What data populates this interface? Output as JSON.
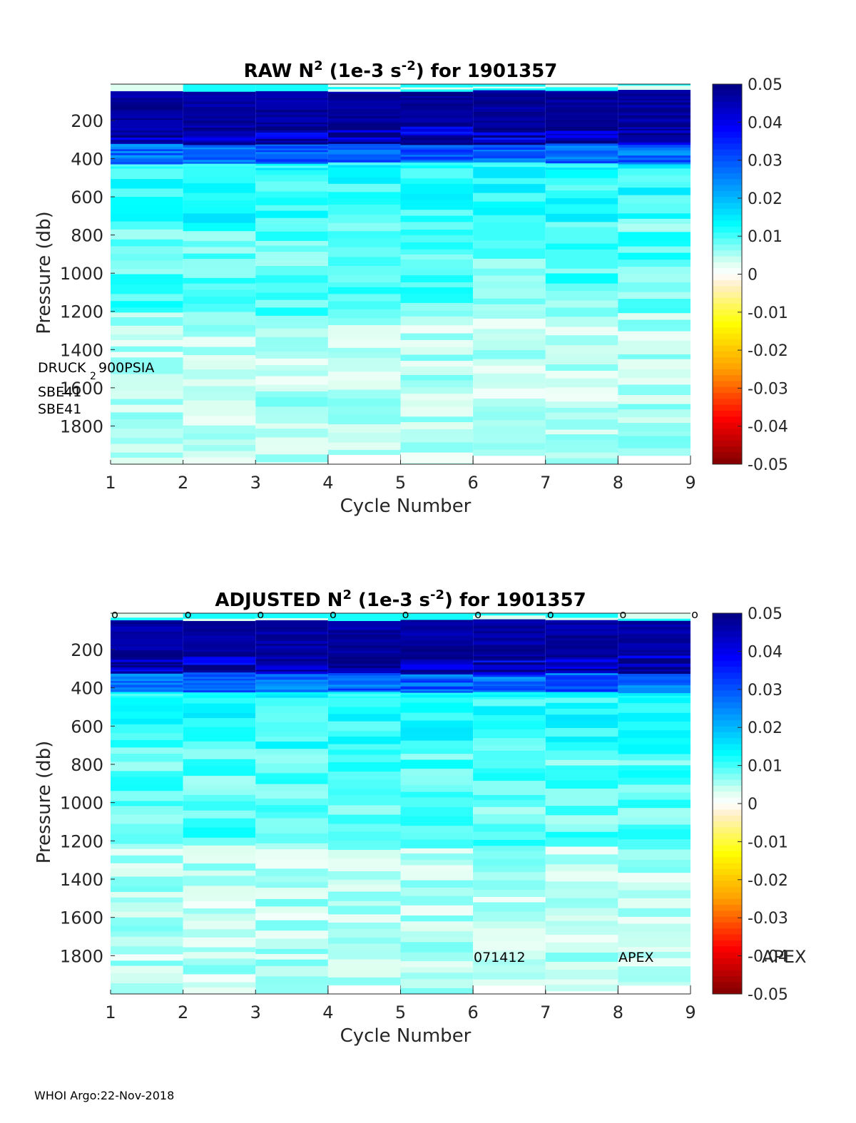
{
  "footer": "WHOI Argo:22-Nov-2018",
  "colorbar": {
    "ticks": [
      "0.05",
      "0.04",
      "0.03",
      "0.02",
      "0.01",
      "0",
      "-0.01",
      "-0.02",
      "-0.03",
      "-0.04",
      "-0.05"
    ]
  },
  "chart_data": [
    {
      "type": "heatmap",
      "title_prefix": "RAW N",
      "title_sup1": "2",
      "title_mid": " (1e-3 s",
      "title_sup2": "-2",
      "title_suffix": ") for 1901357",
      "xlabel": "Cycle Number",
      "ylabel": "Pressure (db)",
      "xlim": [
        1,
        9
      ],
      "ylim": [
        2000,
        10
      ],
      "y_reversed": true,
      "xticks": [
        "1",
        "2",
        "3",
        "4",
        "5",
        "6",
        "7",
        "8",
        "9"
      ],
      "yticks": [
        "200",
        "400",
        "600",
        "800",
        "1000",
        "1200",
        "1400",
        "1600",
        "1800"
      ],
      "clim": [
        -0.05,
        0.05
      ],
      "colormap": "jet-with-white-zero",
      "annotations": [
        "DRUCK",
        "2",
        "900PSIA",
        "SBE41",
        "SBE41"
      ],
      "markers": [],
      "cycles": [
        {
          "x0": 1,
          "x1": 2,
          "max_pressure": 2000,
          "seed": 11
        },
        {
          "x0": 2,
          "x1": 3,
          "max_pressure": 2000,
          "seed": 23
        },
        {
          "x0": 3,
          "x1": 4,
          "max_pressure": 2000,
          "seed": 37
        },
        {
          "x0": 4,
          "x1": 5,
          "max_pressure": 1950,
          "seed": 41
        },
        {
          "x0": 5,
          "x1": 6,
          "max_pressure": 2000,
          "seed": 53
        },
        {
          "x0": 6,
          "x1": 7,
          "max_pressure": 1955,
          "seed": 67
        },
        {
          "x0": 7,
          "x1": 8,
          "max_pressure": 2000,
          "seed": 71
        },
        {
          "x0": 8,
          "x1": 9,
          "max_pressure": 1955,
          "seed": 83
        }
      ]
    },
    {
      "type": "heatmap",
      "title_prefix": "ADJUSTED N",
      "title_sup1": "2",
      "title_mid": " (1e-3 s",
      "title_sup2": "-2",
      "title_suffix": ") for 1901357",
      "xlabel": "Cycle Number",
      "ylabel": "Pressure (db)",
      "xlim": [
        1,
        9
      ],
      "ylim": [
        2000,
        10
      ],
      "y_reversed": true,
      "xticks": [
        "1",
        "2",
        "3",
        "4",
        "5",
        "6",
        "7",
        "8",
        "9"
      ],
      "yticks": [
        "200",
        "400",
        "600",
        "800",
        "1000",
        "1200",
        "1400",
        "1600",
        "1800"
      ],
      "clim": [
        -0.05,
        0.05
      ],
      "colormap": "jet-with-white-zero",
      "annotations": [
        "071412",
        "APEX",
        "APEX"
      ],
      "markers": [
        "o",
        "o",
        "o",
        "o",
        "o",
        "o",
        "o",
        "o",
        "o"
      ],
      "cycles": [
        {
          "x0": 1,
          "x1": 2,
          "max_pressure": 2000,
          "seed": 12
        },
        {
          "x0": 2,
          "x1": 3,
          "max_pressure": 2000,
          "seed": 24
        },
        {
          "x0": 3,
          "x1": 4,
          "max_pressure": 2000,
          "seed": 38
        },
        {
          "x0": 4,
          "x1": 5,
          "max_pressure": 1955,
          "seed": 42
        },
        {
          "x0": 5,
          "x1": 6,
          "max_pressure": 2000,
          "seed": 54
        },
        {
          "x0": 6,
          "x1": 7,
          "max_pressure": 1955,
          "seed": 68
        },
        {
          "x0": 7,
          "x1": 8,
          "max_pressure": 1985,
          "seed": 72
        },
        {
          "x0": 8,
          "x1": 9,
          "max_pressure": 1955,
          "seed": 84
        }
      ]
    }
  ]
}
